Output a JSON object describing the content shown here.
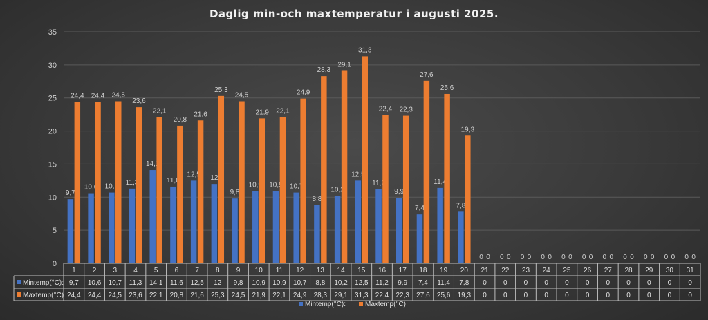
{
  "chart_data": {
    "type": "bar",
    "title": "Daglig min-och maxtemperatur i augusti 2025.",
    "categories": [
      "1",
      "2",
      "3",
      "4",
      "5",
      "6",
      "7",
      "8",
      "9",
      "10",
      "11",
      "12",
      "13",
      "14",
      "15",
      "16",
      "17",
      "18",
      "19",
      "20",
      "21",
      "22",
      "23",
      "24",
      "25",
      "26",
      "27",
      "28",
      "29",
      "30",
      "31"
    ],
    "series": [
      {
        "name": "Mintemp(°C):",
        "color": "#4472c4",
        "values": [
          9.7,
          10.6,
          10.7,
          11.3,
          14.1,
          11.6,
          12.5,
          12,
          9.8,
          10.9,
          10.9,
          10.7,
          8.8,
          10.2,
          12.5,
          11.2,
          9.9,
          7.4,
          11.4,
          7.8,
          0,
          0,
          0,
          0,
          0,
          0,
          0,
          0,
          0,
          0,
          0
        ],
        "labels": [
          "9,7",
          "10,6",
          "10,7",
          "11,3",
          "14,1",
          "11,6",
          "12,5",
          "12",
          "9,8",
          "10,9",
          "10,9",
          "10,7",
          "8,8",
          "10,2",
          "12,5",
          "11,2",
          "9,9",
          "7,4",
          "11,4",
          "7,8",
          "0",
          "0",
          "0",
          "0",
          "0",
          "0",
          "0",
          "0",
          "0",
          "0",
          "0"
        ]
      },
      {
        "name": "Maxtemp(°C)",
        "color": "#ed7d31",
        "values": [
          24.4,
          24.4,
          24.5,
          23.6,
          22.1,
          20.8,
          21.6,
          25.3,
          24.5,
          21.9,
          22.1,
          24.9,
          28.3,
          29.1,
          31.3,
          22.4,
          22.3,
          27.6,
          25.6,
          19.3,
          0,
          0,
          0,
          0,
          0,
          0,
          0,
          0,
          0,
          0,
          0
        ],
        "labels": [
          "24,4",
          "24,4",
          "24,5",
          "23,6",
          "22,1",
          "20,8",
          "21,6",
          "25,3",
          "24,5",
          "21,9",
          "22,1",
          "24,9",
          "28,3",
          "29,1",
          "31,3",
          "22,4",
          "22,3",
          "27,6",
          "25,6",
          "19,3",
          "0",
          "0",
          "0",
          "0",
          "0",
          "0",
          "0",
          "0",
          "0",
          "0",
          "0"
        ]
      }
    ],
    "yticks": [
      "0",
      "5",
      "10",
      "15",
      "20",
      "25",
      "30",
      "35"
    ],
    "ylim": [
      0,
      35
    ],
    "grid": true,
    "legend": "bottom",
    "data_table": true
  }
}
